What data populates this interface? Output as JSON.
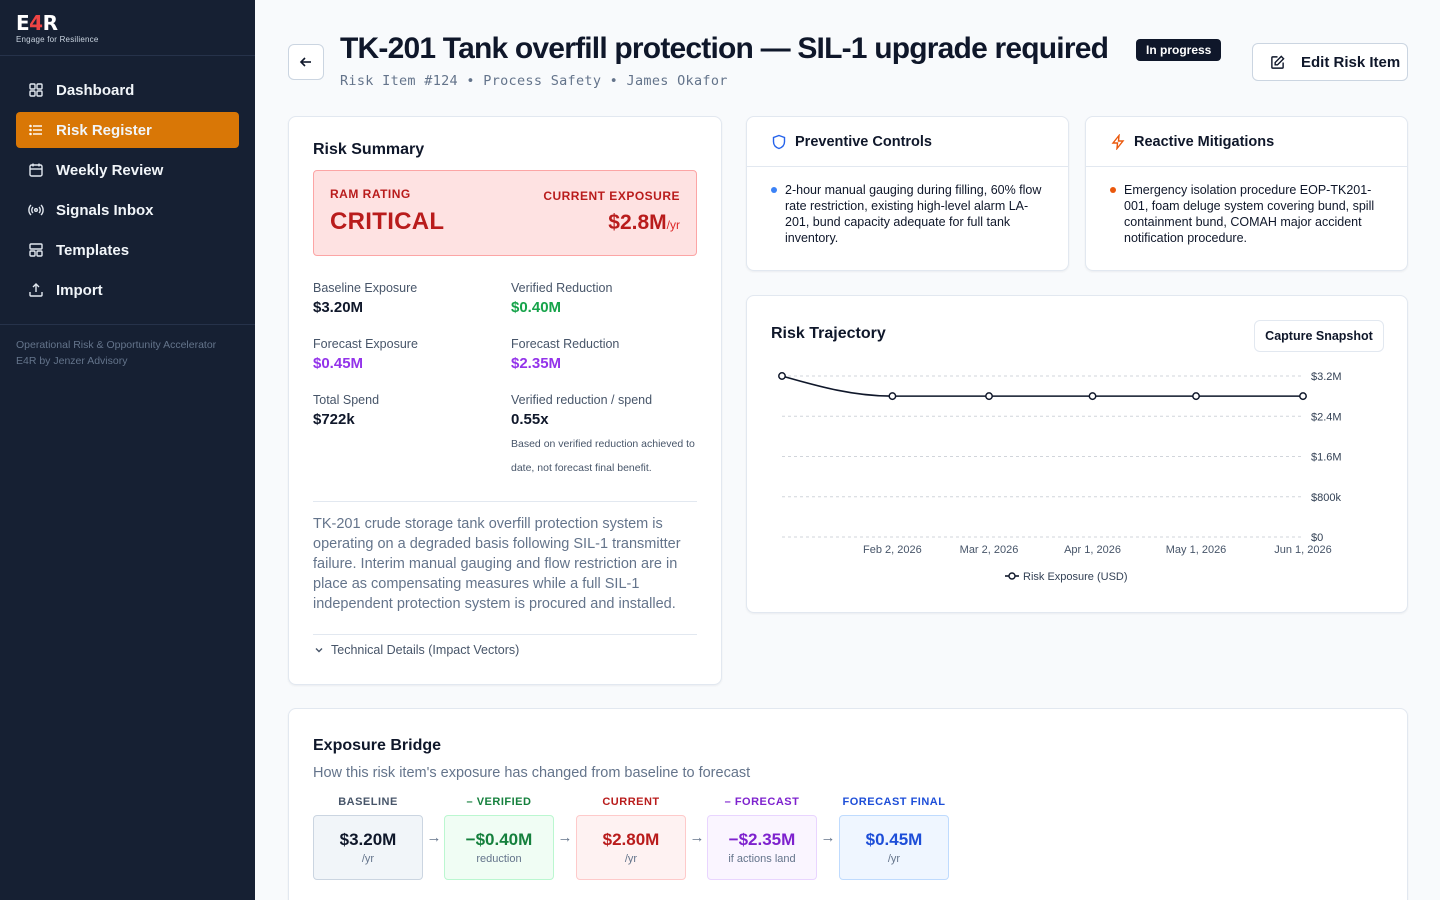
{
  "brand": {
    "logo_pre": "E",
    "logo_mid": "4",
    "logo_post": "R",
    "tagline": "Engage for Resilience"
  },
  "sidebar": {
    "items": [
      {
        "label": "Dashboard",
        "icon": "dashboard-icon",
        "active": false
      },
      {
        "label": "Risk Register",
        "icon": "list-icon",
        "active": true
      },
      {
        "label": "Weekly Review",
        "icon": "calendar-icon",
        "active": false
      },
      {
        "label": "Signals Inbox",
        "icon": "signal-icon",
        "active": false
      },
      {
        "label": "Templates",
        "icon": "template-icon",
        "active": false
      },
      {
        "label": "Import",
        "icon": "upload-icon",
        "active": false
      }
    ],
    "footer_line1": "Operational Risk & Opportunity Accelerator",
    "footer_line2": "E4R by Jenzer Advisory"
  },
  "header": {
    "title": "TK-201 Tank overfill protection — SIL-1 upgrade required",
    "status": "In progress",
    "subtitle": "Risk Item #124 • Process Safety • James Okafor",
    "edit_label": "Edit Risk Item"
  },
  "summary": {
    "title": "Risk Summary",
    "ram_label": "RAM RATING",
    "ram_value": "CRITICAL",
    "exposure_label": "CURRENT EXPOSURE",
    "exposure_value": "$2.8M",
    "exposure_unit": "/yr",
    "metrics": [
      {
        "label": "Baseline Exposure",
        "value": "$3.20M"
      },
      {
        "label": "Verified Reduction",
        "value": "$0.40M"
      },
      {
        "label": "Forecast Exposure",
        "value": "$0.45M"
      },
      {
        "label": "Forecast Reduction",
        "value": "$2.35M"
      },
      {
        "label": "Total Spend",
        "value": "$722k"
      },
      {
        "label": "Verified reduction / spend",
        "value": "0.55x"
      }
    ],
    "ratio_note": "Based on verified reduction achieved to date, not forecast final benefit.",
    "description": "TK-201 crude storage tank overfill protection system is operating on a degraded basis following SIL-1 transmitter failure. Interim manual gauging and flow restriction are in place as compensating measures while a full SIL-1 independent protection system is procured and installed.",
    "tech_details": "Technical Details (Impact Vectors)"
  },
  "preventive": {
    "title": "Preventive Controls",
    "text": "2-hour manual gauging during filling, 60% flow rate restriction, existing high-level alarm LA-201, bund capacity adequate for full tank inventory."
  },
  "reactive": {
    "title": "Reactive Mitigations",
    "text": "Emergency isolation procedure EOP-TK201-001, foam deluge system covering bund, spill containment bund, COMAH major accident notification procedure."
  },
  "trajectory": {
    "title": "Risk Trajectory",
    "snapshot_label": "Capture Snapshot"
  },
  "chart_data": {
    "type": "line",
    "title": "Risk Trajectory",
    "x": [
      "2026-01-01",
      "2026-02-02",
      "2026-03-02",
      "2026-04-01",
      "2026-05-01",
      "2026-06-01"
    ],
    "xtick_labels": [
      "Feb 2, 2026",
      "Mar 2, 2026",
      "Apr 1, 2026",
      "May 1, 2026",
      "Jun 1, 2026"
    ],
    "series": [
      {
        "name": "Risk Exposure (USD)",
        "values": [
          3200000,
          2800000,
          2800000,
          2800000,
          2800000,
          2800000
        ]
      }
    ],
    "yticks": [
      0,
      800000,
      1600000,
      2400000,
      3200000
    ],
    "ytick_labels": [
      "$0",
      "$800k",
      "$1.6M",
      "$2.4M",
      "$3.2M"
    ],
    "ylim": [
      0,
      3200000
    ],
    "grid": true,
    "legend": "bottom"
  },
  "bridge": {
    "title": "Exposure Bridge",
    "subtitle": "How this risk item's exposure has changed from baseline to forecast",
    "arrow": "→",
    "steps": [
      {
        "label": "BASELINE",
        "value": "$3.20M",
        "unit": "/yr"
      },
      {
        "label": "– VERIFIED",
        "value": "−$0.40M",
        "unit": "reduction"
      },
      {
        "label": "CURRENT",
        "value": "$2.80M",
        "unit": "/yr"
      },
      {
        "label": "– FORECAST",
        "value": "−$2.35M",
        "unit": "if actions land"
      },
      {
        "label": "FORECAST FINAL",
        "value": "$0.45M",
        "unit": "/yr"
      }
    ]
  },
  "colors": {
    "accent": "#d97706",
    "critical": "#b91c1c",
    "sidebar": "#162033"
  }
}
